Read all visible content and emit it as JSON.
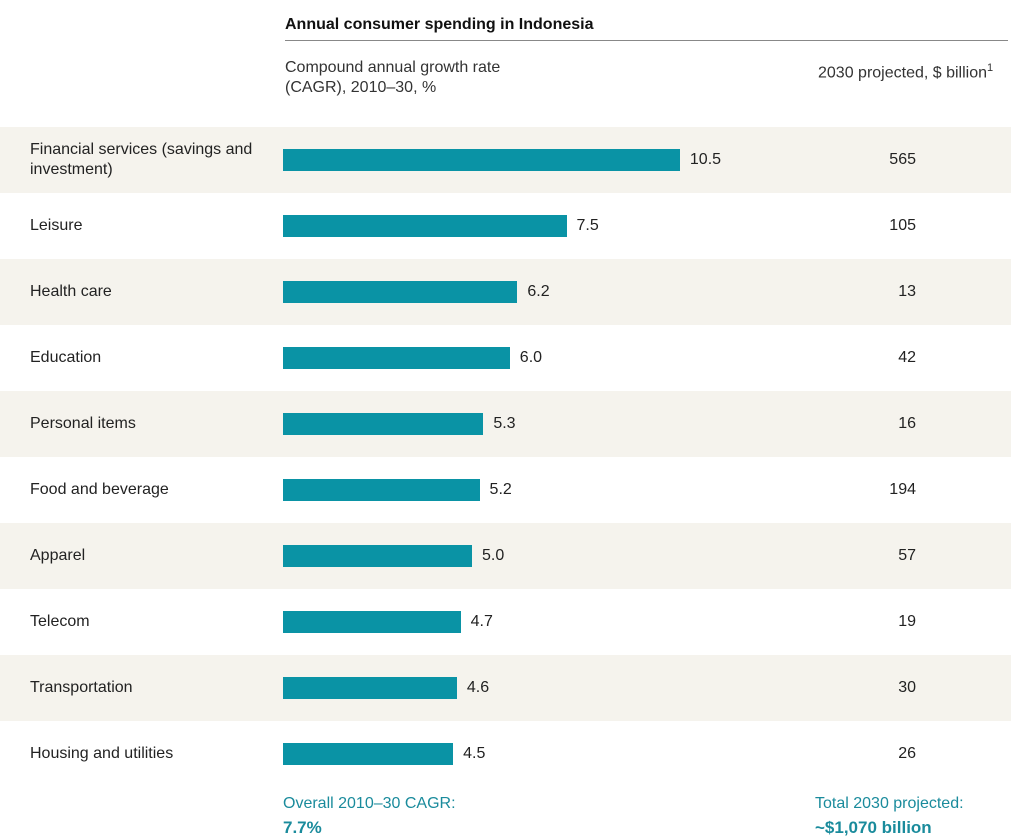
{
  "chart_data": {
    "type": "bar",
    "title": "Annual consumer spending in Indonesia",
    "value_header": "Compound annual growth rate (CAGR), 2010–30, %",
    "projected_header": "2030 projected, $ billion",
    "projected_footnote": "1",
    "categories": [
      "Financial services (savings and investment)",
      "Leisure",
      "Health care",
      "Education",
      "Personal items",
      "Food and beverage",
      "Apparel",
      "Telecom",
      "Transportation",
      "Housing and utilities"
    ],
    "values": [
      10.5,
      7.5,
      6.2,
      6.0,
      5.3,
      5.2,
      5.0,
      4.7,
      4.6,
      4.5
    ],
    "value_labels": [
      "10.5",
      "7.5",
      "6.2",
      "6.0",
      "5.3",
      "5.2",
      "5.0",
      "4.7",
      "4.6",
      "4.5"
    ],
    "projected_2030": [
      565,
      105,
      13,
      42,
      16,
      194,
      57,
      19,
      30,
      26
    ],
    "color": "#0a93a5",
    "overall_label": "Overall 2010–30 CAGR:",
    "overall_value": "7.7%",
    "total_label": "Total 2030 projected:",
    "total_value": "~$1,070 billion"
  }
}
